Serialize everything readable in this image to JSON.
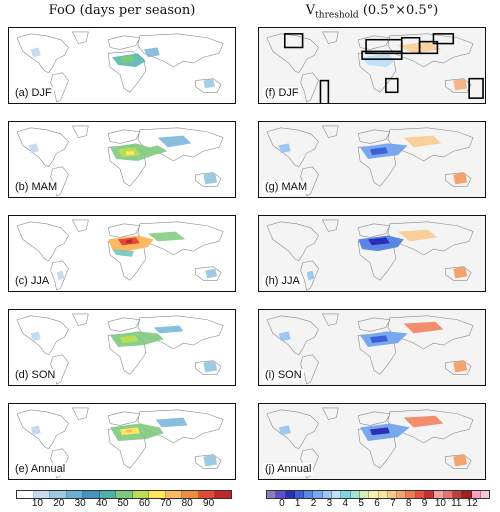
{
  "titles": {
    "left": "FoO (days per season)",
    "right_main": "V",
    "right_sub": "threshold",
    "right_suffix": " (0.5°×0.5°)"
  },
  "panels_left": [
    {
      "label": "(a) DJF",
      "season": "DJF"
    },
    {
      "label": "(b) MAM",
      "season": "MAM"
    },
    {
      "label": "(c) JJA",
      "season": "JJA"
    },
    {
      "label": "(d) SON",
      "season": "SON"
    },
    {
      "label": "(e) Annual",
      "season": "Annual"
    }
  ],
  "panels_right": [
    {
      "label": "(f) DJF",
      "season": "DJF"
    },
    {
      "label": "(g) MAM",
      "season": "MAM"
    },
    {
      "label": "(h) JJA",
      "season": "JJA"
    },
    {
      "label": "(i) SON",
      "season": "SON"
    },
    {
      "label": "(j) Annual",
      "season": "Annual"
    }
  ],
  "colorbar_left": {
    "ticks": [
      "10",
      "20",
      "30",
      "40",
      "50",
      "60",
      "70",
      "80",
      "90"
    ],
    "colors": [
      "#ffffff",
      "#c6dbef",
      "#9ecae1",
      "#6baed6",
      "#4393c3",
      "#4eb3a8",
      "#7fc97f",
      "#b8de58",
      "#ffe65a",
      "#fdb863",
      "#f08a3e",
      "#e34a33",
      "#c0282a"
    ]
  },
  "colorbar_right": {
    "ticks": [
      "0",
      "1",
      "2",
      "3",
      "4",
      "5",
      "6",
      "7",
      "8",
      "9",
      "10",
      "11",
      "12"
    ],
    "colors": [
      "#8e7cc3",
      "#5b4fd1",
      "#2b2fb8",
      "#3c5ed6",
      "#5b86e5",
      "#7aa8ef",
      "#9cc6f3",
      "#bfe0f7",
      "#7fd6e0",
      "#a6e3c8",
      "#d3f0b8",
      "#f5f0b0",
      "#fbe3a0",
      "#f9c98a",
      "#f4a26e",
      "#ee7b55",
      "#e2523d",
      "#c93030",
      "#f2a0a0",
      "#e87070",
      "#c04040",
      "#a02020",
      "#ff9ebd",
      "#f3c6d8"
    ]
  },
  "boxes_panel_f": [
    "box-1",
    "box-2",
    "box-3",
    "box-4",
    "box-5",
    "box-6",
    "box-7",
    "box-8"
  ]
}
